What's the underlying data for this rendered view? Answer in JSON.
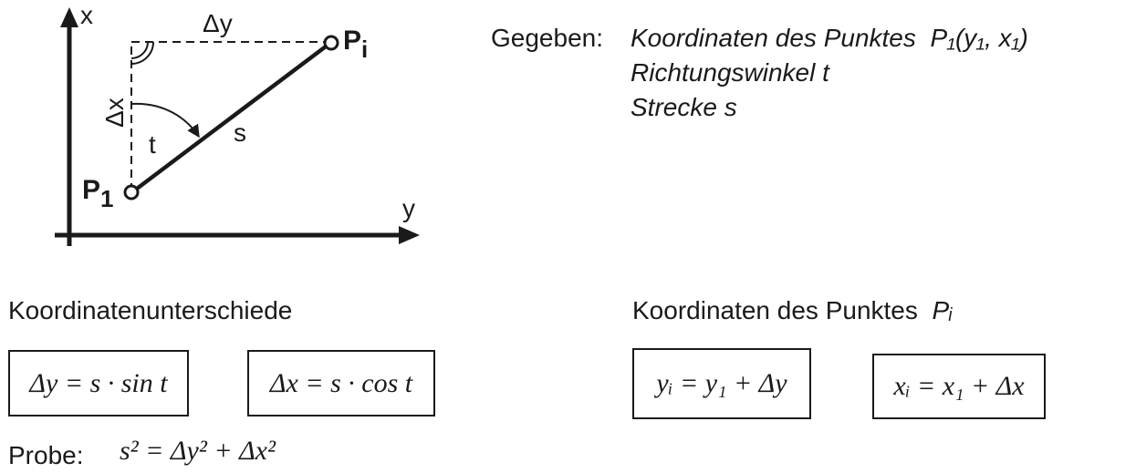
{
  "diagram": {
    "axis_x_label": "x",
    "axis_y_label": "y",
    "delta_y_label": "Δy",
    "delta_x_label": "Δx",
    "angle_label": "t",
    "segment_label": "s",
    "p1_letter": "P",
    "p1_sub": "1",
    "pi_letter": "P",
    "pi_sub": "i"
  },
  "given": {
    "heading": "Gegeben:",
    "line1_text": "Koordinaten des Punktes",
    "line1_formula": "P₁(y₁, x₁)",
    "line2": "Richtungswinkel  t",
    "line3": "Strecke  s"
  },
  "differences": {
    "title": "Koordinatenunterschiede",
    "formula_dy": "Δy = s · sin t",
    "formula_dx": "Δx = s · cos t"
  },
  "point_coords": {
    "title": "Koordinaten des Punktes",
    "title_symbol": "Pᵢ",
    "formula_yi": "yᵢ = y₁ + Δy",
    "formula_xi": "xᵢ = x₁ + Δx"
  },
  "check": {
    "label": "Probe:",
    "formula": "s² = Δy² + Δx²"
  }
}
